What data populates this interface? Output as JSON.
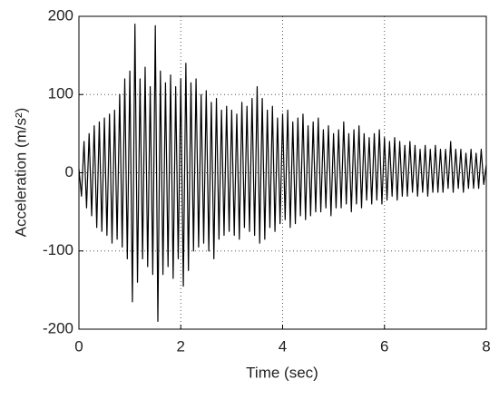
{
  "chart_data": {
    "type": "line",
    "xlabel": "Time (sec)",
    "ylabel": "Acceleration (m/s²)",
    "xlim": [
      0,
      8
    ],
    "ylim": [
      -200,
      200
    ],
    "xticks": [
      0,
      2,
      4,
      6,
      8
    ],
    "yticks": [
      -200,
      -100,
      0,
      100,
      200
    ],
    "grid": true,
    "color": "#000000",
    "x": [
      0,
      0.05,
      0.1,
      0.15,
      0.2,
      0.25,
      0.3,
      0.35,
      0.4,
      0.45,
      0.5,
      0.55,
      0.6,
      0.65,
      0.7,
      0.75,
      0.8,
      0.85,
      0.9,
      0.95,
      1,
      1.05,
      1.1,
      1.15,
      1.2,
      1.25,
      1.3,
      1.35,
      1.4,
      1.45,
      1.5,
      1.55,
      1.6,
      1.65,
      1.7,
      1.75,
      1.8,
      1.85,
      1.9,
      1.95,
      2,
      2.05,
      2.1,
      2.15,
      2.2,
      2.25,
      2.3,
      2.35,
      2.4,
      2.45,
      2.5,
      2.55,
      2.6,
      2.65,
      2.7,
      2.75,
      2.8,
      2.85,
      2.9,
      2.95,
      3,
      3.05,
      3.1,
      3.15,
      3.2,
      3.25,
      3.3,
      3.35,
      3.4,
      3.45,
      3.5,
      3.55,
      3.6,
      3.65,
      3.7,
      3.75,
      3.8,
      3.85,
      3.9,
      3.95,
      4,
      4.05,
      4.1,
      4.15,
      4.2,
      4.25,
      4.3,
      4.35,
      4.4,
      4.45,
      4.5,
      4.55,
      4.6,
      4.65,
      4.7,
      4.75,
      4.8,
      4.85,
      4.9,
      4.95,
      5,
      5.05,
      5.1,
      5.15,
      5.2,
      5.25,
      5.3,
      5.35,
      5.4,
      5.45,
      5.5,
      5.55,
      5.6,
      5.65,
      5.7,
      5.75,
      5.8,
      5.85,
      5.9,
      5.95,
      6,
      6.05,
      6.1,
      6.15,
      6.2,
      6.25,
      6.3,
      6.35,
      6.4,
      6.45,
      6.5,
      6.55,
      6.6,
      6.65,
      6.7,
      6.75,
      6.8,
      6.85,
      6.9,
      6.95,
      7,
      7.05,
      7.1,
      7.15,
      7.2,
      7.25,
      7.3,
      7.35,
      7.4,
      7.45,
      7.5,
      7.55,
      7.6,
      7.65,
      7.7,
      7.75,
      7.8,
      7.85,
      7.9,
      7.95,
      8
    ],
    "values": [
      5,
      -30,
      40,
      -45,
      50,
      -55,
      60,
      -70,
      65,
      -75,
      70,
      -80,
      75,
      -90,
      80,
      -85,
      100,
      -95,
      120,
      -110,
      130,
      -165,
      190,
      -140,
      120,
      -110,
      135,
      -120,
      110,
      -130,
      188,
      -190,
      130,
      -130,
      115,
      -120,
      125,
      -135,
      110,
      -110,
      120,
      -145,
      140,
      -125,
      115,
      -100,
      120,
      -95,
      100,
      -90,
      105,
      -100,
      90,
      -110,
      95,
      -85,
      80,
      -80,
      85,
      -75,
      80,
      -80,
      75,
      -85,
      90,
      -70,
      85,
      -75,
      95,
      -80,
      110,
      -90,
      95,
      -85,
      80,
      -70,
      85,
      -75,
      70,
      -65,
      75,
      -60,
      80,
      -70,
      65,
      -65,
      70,
      -55,
      75,
      -60,
      60,
      -55,
      65,
      -50,
      70,
      -50,
      55,
      -45,
      60,
      -55,
      50,
      -45,
      55,
      -45,
      65,
      -40,
      50,
      -50,
      55,
      -40,
      60,
      -45,
      50,
      -35,
      45,
      -40,
      50,
      -35,
      55,
      -40,
      45,
      -35,
      40,
      -30,
      45,
      -35,
      40,
      -30,
      35,
      -30,
      40,
      -25,
      35,
      -30,
      30,
      -25,
      35,
      -30,
      30,
      -25,
      35,
      -25,
      30,
      -25,
      30,
      -20,
      40,
      -25,
      30,
      -20,
      30,
      -25,
      25,
      -20,
      30,
      -20,
      25,
      -20,
      30,
      -15,
      10
    ]
  }
}
